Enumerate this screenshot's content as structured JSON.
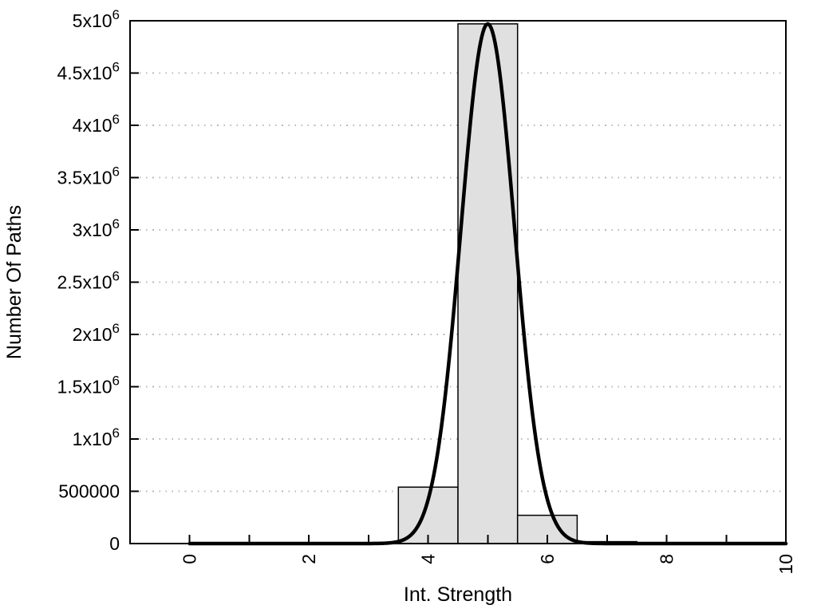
{
  "chart_data": {
    "type": "bar",
    "subtype": "histogram_with_gaussian_fit_curve",
    "title": "",
    "xlabel": "Int. Strength",
    "ylabel": "Number Of Paths",
    "xlim": [
      -1,
      10
    ],
    "ylim": [
      0,
      5000000
    ],
    "grid": "horizontal dotted gridlines at each labeled y tick, no vertical gridlines",
    "legend": "none",
    "x_ticks": {
      "minor_step": 1,
      "labeled_values": [
        0,
        2,
        4,
        6,
        8,
        10
      ],
      "labels": [
        "0",
        "2",
        "4",
        "6",
        "8",
        "10"
      ],
      "label_rotation_deg": -90
    },
    "y_ticks": [
      {
        "value": 0,
        "label": "0"
      },
      {
        "value": 500000,
        "label": "500000"
      },
      {
        "value": 1000000,
        "label": "1x10^6"
      },
      {
        "value": 1500000,
        "label": "1.5x10^6"
      },
      {
        "value": 2000000,
        "label": "2x10^6"
      },
      {
        "value": 2500000,
        "label": "2.5x10^6"
      },
      {
        "value": 3000000,
        "label": "3x10^6"
      },
      {
        "value": 3500000,
        "label": "3.5x10^6"
      },
      {
        "value": 4000000,
        "label": "4x10^6"
      },
      {
        "value": 4500000,
        "label": "4.5x10^6"
      },
      {
        "value": 5000000,
        "label": "5x10^6"
      }
    ],
    "histogram": {
      "bin_width": 1,
      "bin_centers": [
        3,
        4,
        5,
        6,
        7
      ],
      "counts": [
        8000,
        540000,
        4970000,
        270000,
        18000
      ],
      "fill": "#e0e0e0",
      "stroke": "#000000"
    },
    "fit_curve": {
      "shape": "gaussian",
      "peak": 4970000,
      "mean": 5.0,
      "sigma": 0.45,
      "x_domain": [
        0,
        10
      ],
      "color": "#000000",
      "stroke_width": 4.5
    },
    "colors": {
      "axis": "#000000",
      "grid": "#b8b8b8",
      "text": "#000000",
      "background": "#ffffff"
    }
  }
}
